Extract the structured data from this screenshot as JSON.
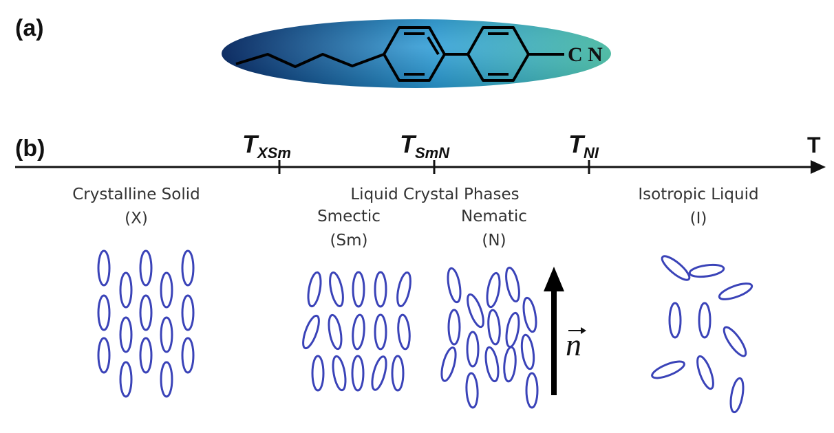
{
  "panel_a": {
    "label": "(a)",
    "group_label": "C N"
  },
  "panel_b": {
    "label": "(b)",
    "axis": {
      "end_label": "T",
      "transitions": [
        {
          "main": "T",
          "sub": "XSm"
        },
        {
          "main": "T",
          "sub": "SmN"
        },
        {
          "main": "T",
          "sub": "NI"
        }
      ]
    },
    "phases": {
      "crystal": {
        "name": "Crystalline Solid",
        "abbr": "(X)"
      },
      "lc": {
        "name": "Liquid Crystal Phases"
      },
      "smectic": {
        "name": "Smectic",
        "abbr": "(Sm)"
      },
      "nematic": {
        "name": "Nematic",
        "abbr": "(N)"
      },
      "isotropic": {
        "name": "Isotropic Liquid",
        "abbr": "(I)"
      }
    },
    "director": {
      "symbol": "n"
    }
  },
  "colors": {
    "molecule_stroke": "#3a43b8",
    "ellipse_dark": "#0b2f6e",
    "ellipse_mid": "#2a9dd8",
    "ellipse_light": "#5ad6bb"
  }
}
